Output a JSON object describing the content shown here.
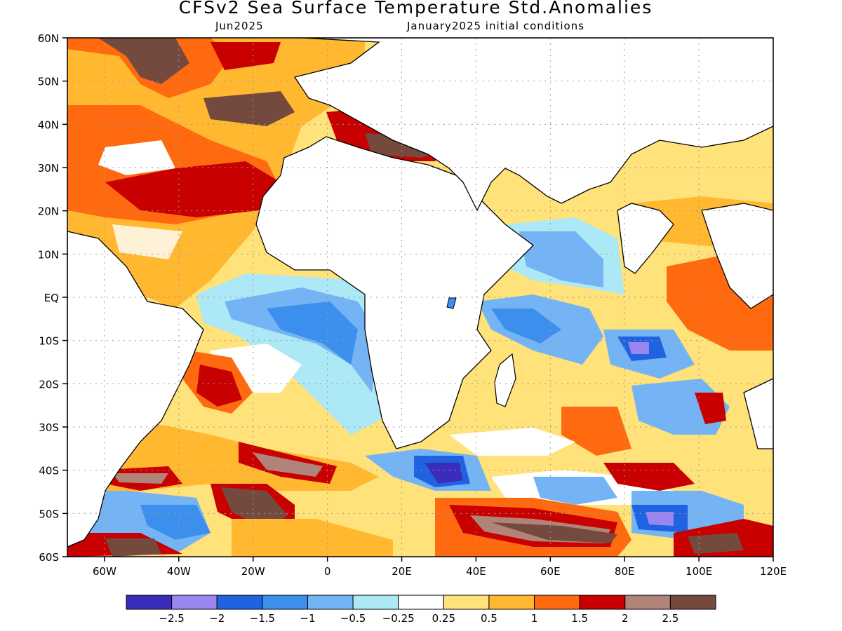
{
  "title": "CFSv2 Sea Surface Temperature Std.Anomalies",
  "subtitle_left": "Jun2025",
  "subtitle_right": "January2025 initial conditions",
  "map": {
    "lon_range": [
      -70,
      120
    ],
    "lat_range": [
      -60,
      60
    ],
    "lat_ticks": [
      {
        "label": "60N",
        "lat": 60
      },
      {
        "label": "50N",
        "lat": 50
      },
      {
        "label": "40N",
        "lat": 40
      },
      {
        "label": "30N",
        "lat": 30
      },
      {
        "label": "20N",
        "lat": 20
      },
      {
        "label": "10N",
        "lat": 10
      },
      {
        "label": "EQ",
        "lat": 0
      },
      {
        "label": "10S",
        "lat": -10
      },
      {
        "label": "20S",
        "lat": -20
      },
      {
        "label": "30S",
        "lat": -30
      },
      {
        "label": "40S",
        "lat": -40
      },
      {
        "label": "50S",
        "lat": -50
      },
      {
        "label": "60S",
        "lat": -60
      }
    ],
    "lon_ticks": [
      {
        "label": "60W",
        "lon": -60
      },
      {
        "label": "40W",
        "lon": -40
      },
      {
        "label": "20W",
        "lon": -20
      },
      {
        "label": "0",
        "lon": 0
      },
      {
        "label": "20E",
        "lon": 20
      },
      {
        "label": "40E",
        "lon": 40
      },
      {
        "label": "60E",
        "lon": 60
      },
      {
        "label": "80E",
        "lon": 80
      },
      {
        "label": "100E",
        "lon": 100
      },
      {
        "label": "120E",
        "lon": 120
      }
    ],
    "grid": true
  },
  "colorbar": {
    "colors": [
      "#3b2dbb",
      "#9a86f0",
      "#1f63e0",
      "#3d8fee",
      "#74b4f4",
      "#ade8f6",
      "#ffffff",
      "#ffe27a",
      "#ffb830",
      "#ff6a10",
      "#c80000",
      "#b08478",
      "#744a3e"
    ],
    "labels": [
      "−2.5",
      "−2",
      "−1.5",
      "−1",
      "−0.5",
      "−0.25",
      "0.25",
      "0.5",
      "1",
      "1.5",
      "2",
      "2.5"
    ]
  }
}
